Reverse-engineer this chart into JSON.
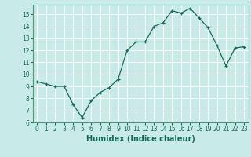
{
  "x": [
    0,
    1,
    2,
    3,
    4,
    5,
    6,
    7,
    8,
    9,
    10,
    11,
    12,
    13,
    14,
    15,
    16,
    17,
    18,
    19,
    20,
    21,
    22,
    23
  ],
  "y": [
    9.4,
    9.2,
    9.0,
    9.0,
    7.5,
    6.4,
    7.8,
    8.5,
    8.9,
    9.6,
    12.0,
    12.7,
    12.7,
    14.0,
    14.3,
    15.3,
    15.1,
    15.5,
    14.7,
    13.9,
    12.4,
    10.7,
    12.2,
    12.3
  ],
  "line_color": "#1a6b5a",
  "marker": "+",
  "bg_color": "#c8ebe8",
  "grid_color": "#ffffff",
  "xlabel": "Humidex (Indice chaleur)",
  "xlim": [
    -0.5,
    23.5
  ],
  "ylim": [
    6,
    15.8
  ],
  "yticks": [
    6,
    7,
    8,
    9,
    10,
    11,
    12,
    13,
    14,
    15
  ],
  "xticks": [
    0,
    1,
    2,
    3,
    4,
    5,
    6,
    7,
    8,
    9,
    10,
    11,
    12,
    13,
    14,
    15,
    16,
    17,
    18,
    19,
    20,
    21,
    22,
    23
  ],
  "xlabel_fontsize": 7,
  "tick_fontsize": 5.5,
  "label_color": "#1a6b5a",
  "spine_color": "#4a9a80"
}
